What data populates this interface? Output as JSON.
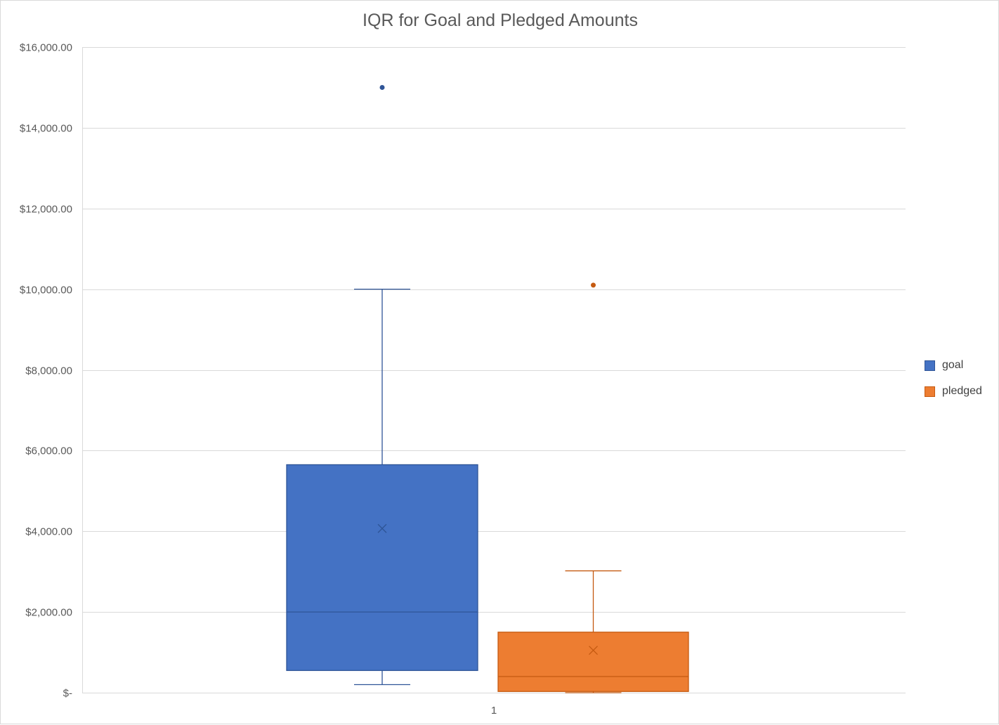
{
  "chart_data": {
    "type": "box",
    "title": "IQR for Goal and Pledged Amounts",
    "xlabel": "",
    "ylabel": "",
    "ylim": [
      0,
      16000
    ],
    "y_ticks": [
      0,
      2000,
      4000,
      6000,
      8000,
      10000,
      12000,
      14000,
      16000
    ],
    "y_tick_labels": [
      "$-",
      "$2,000.00",
      "$4,000.00",
      "$6,000.00",
      "$8,000.00",
      "$10,000.00",
      "$12,000.00",
      "$14,000.00",
      "$16,000.00"
    ],
    "categories": [
      "1"
    ],
    "grid": true,
    "legend_position": "right",
    "series": [
      {
        "name": "goal",
        "color": "#4472c4",
        "edge_color": "#2f5597",
        "min": 200,
        "q1": 550,
        "median": 2000,
        "q3": 5650,
        "max": 10000,
        "mean": 4070,
        "outliers": [
          15000
        ]
      },
      {
        "name": "pledged",
        "color": "#ed7d31",
        "edge_color": "#c55a11",
        "min": 0,
        "q1": 30,
        "median": 400,
        "q3": 1500,
        "max": 3020,
        "mean": 1050,
        "outliers": [
          10100
        ]
      }
    ]
  }
}
